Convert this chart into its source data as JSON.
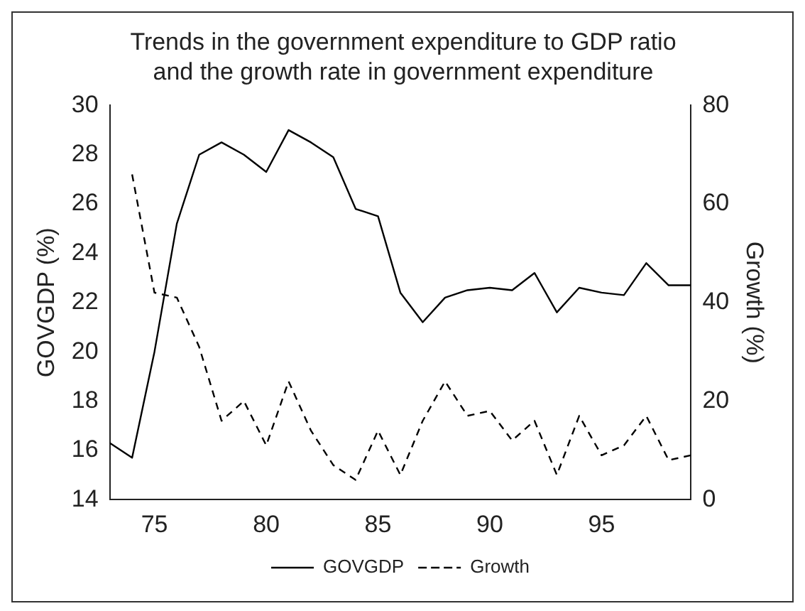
{
  "chart_data": {
    "type": "line",
    "title": "Trends in the government expenditure to GDP ratio and the growth rate in government expenditure",
    "ylabel": "GOVGDP (%)",
    "y2label": "Growth (%)",
    "x": [
      73,
      74,
      75,
      76,
      77,
      78,
      79,
      80,
      81,
      82,
      83,
      84,
      85,
      86,
      87,
      88,
      89,
      90,
      91,
      92,
      93,
      94,
      95,
      96,
      97,
      98,
      99
    ],
    "series": [
      {
        "name": "GOVGDP",
        "color": "#000000",
        "line_style": "solid",
        "values": [
          16.3,
          15.7,
          20.0,
          25.2,
          28.0,
          28.5,
          28.0,
          27.3,
          29.0,
          28.5,
          27.9,
          25.8,
          25.5,
          22.4,
          21.2,
          22.2,
          22.5,
          22.6,
          22.5,
          23.2,
          21.6,
          22.6,
          22.4,
          22.3,
          23.6,
          22.7,
          22.7
        ]
      },
      {
        "name": "Growth",
        "color": "#000000",
        "line_style": "dashed",
        "axis": "y2",
        "values": [
          null,
          66,
          42,
          41,
          31,
          16,
          20,
          11,
          24,
          14,
          7,
          4,
          14,
          5,
          16,
          24,
          17,
          18,
          12,
          16,
          5,
          17,
          9,
          11,
          17,
          8,
          9
        ]
      }
    ],
    "xlim": [
      73,
      99
    ],
    "xticks": [
      75,
      80,
      85,
      90,
      95
    ],
    "ylim": [
      14,
      30
    ],
    "yticks": [
      14,
      16,
      18,
      20,
      22,
      24,
      26,
      28,
      30
    ],
    "y2lim": [
      0,
      80
    ],
    "y2ticks": [
      0,
      20,
      40,
      60,
      80
    ],
    "grid": false,
    "legend": "bottom",
    "marker": "none"
  }
}
